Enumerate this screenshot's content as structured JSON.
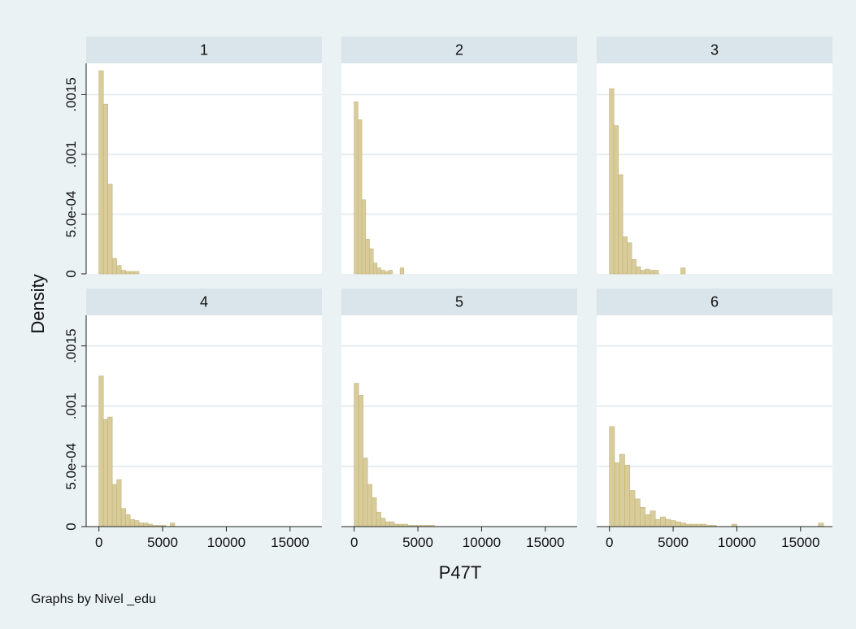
{
  "chart_data": {
    "type": "bar",
    "subtype": "histogram",
    "layout": "2x3 facet grid",
    "xlabel": "P47T",
    "ylabel": "Density",
    "note": "Graphs by Nivel _edu",
    "xlim": [
      -1000,
      17500
    ],
    "ylim": [
      0,
      0.0017
    ],
    "x_ticks": [
      0,
      5000,
      10000,
      15000
    ],
    "x_tick_labels": [
      "0",
      "5000",
      "10000",
      "15000"
    ],
    "y_ticks": [
      0,
      0.0005,
      0.001,
      0.0015
    ],
    "y_tick_labels": [
      "0",
      "5.0e-04",
      ".001",
      ".0015"
    ],
    "grid": true,
    "colors": {
      "background": "#eaf2f3",
      "plot_background": "#ffffff",
      "strip": "#d9e5ea",
      "bar_fill": "#d8cd9a",
      "bar_edge": "#c2b27a",
      "grid": "#e6edf0"
    },
    "panels": [
      {
        "label": "1",
        "bin_width": 350,
        "heights": [
          0.0017,
          0.00142,
          0.00075,
          0.00013,
          7e-05,
          3e-05,
          2e-05,
          2e-05,
          2e-05
        ]
      },
      {
        "label": "2",
        "bin_width": 300,
        "heights": [
          0.00144,
          0.00129,
          0.00062,
          0.00029,
          0.00021,
          9e-05,
          5e-05,
          3e-05,
          2e-05,
          3e-05,
          0,
          0,
          5e-05
        ]
      },
      {
        "label": "3",
        "bin_width": 350,
        "heights": [
          0.00155,
          0.00124,
          0.00083,
          0.00031,
          0.00026,
          0.00012,
          6e-05,
          3e-05,
          4e-05,
          3e-05,
          3e-05,
          0,
          0,
          0,
          0,
          0,
          5e-05
        ]
      },
      {
        "label": "4",
        "bin_width": 350,
        "heights": [
          0.00125,
          0.00089,
          0.00091,
          0.00035,
          0.00039,
          0.00015,
          0.0001,
          6e-05,
          5e-05,
          3e-05,
          3e-05,
          2e-05,
          1e-05,
          1e-05,
          1e-05,
          0,
          3e-05
        ]
      },
      {
        "label": "5",
        "bin_width": 350,
        "heights": [
          0.00119,
          0.00109,
          0.00057,
          0.00035,
          0.00024,
          0.00012,
          7e-05,
          4e-05,
          4e-05,
          2e-05,
          2e-05,
          2e-05,
          1e-05,
          1e-05,
          1e-05,
          1e-05,
          1e-05,
          1e-05
        ]
      },
      {
        "label": "6",
        "bin_width": 400,
        "heights": [
          0.00083,
          0.00053,
          0.0006,
          0.00051,
          0.0003,
          0.00023,
          0.00016,
          0.0001,
          0.00013,
          6e-05,
          8e-05,
          6e-05,
          5e-05,
          4e-05,
          3e-05,
          2e-05,
          2e-05,
          2e-05,
          2e-05,
          1e-05,
          1e-05,
          0,
          0,
          0,
          2e-05,
          0,
          0,
          0,
          0,
          0,
          0,
          0,
          0,
          0,
          0,
          0,
          0,
          0,
          0,
          0,
          0,
          3e-05
        ]
      }
    ]
  }
}
